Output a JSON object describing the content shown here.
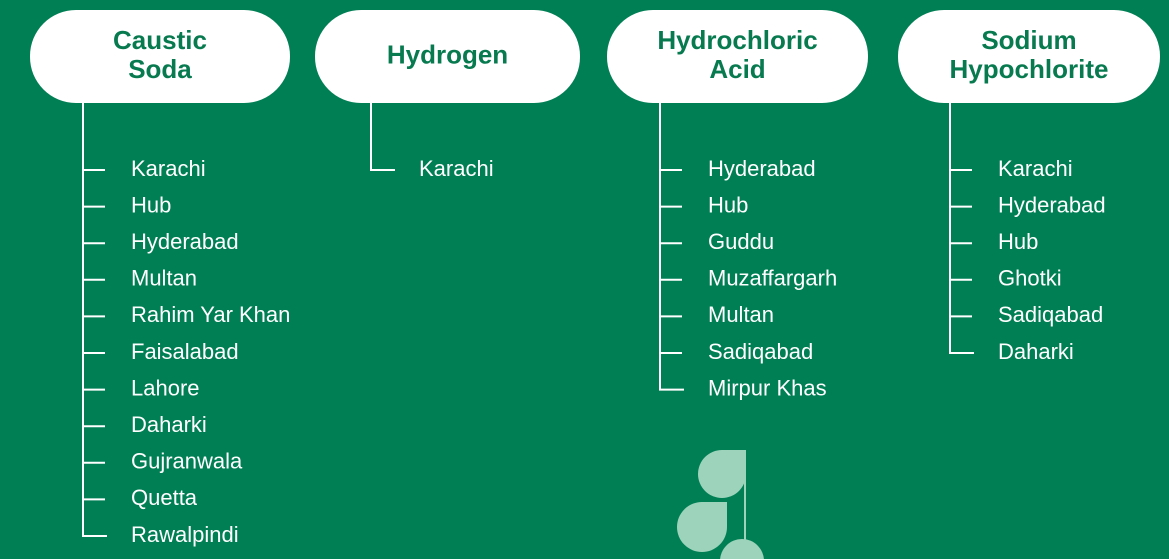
{
  "columns": [
    {
      "title": [
        "Caustic",
        "Soda"
      ],
      "items": [
        "Karachi",
        "Hub",
        "Hyderabad",
        "Multan",
        "Rahim Yar Khan",
        "Faisalabad",
        "Lahore",
        "Daharki",
        "Gujranwala",
        "Quetta",
        "Rawalpindi"
      ]
    },
    {
      "title": [
        "Hydrogen"
      ],
      "items": [
        "Karachi"
      ]
    },
    {
      "title": [
        "Hydrochloric",
        "Acid"
      ],
      "items": [
        "Hyderabad",
        "Hub",
        "Guddu",
        "Muzaffargarh",
        "Multan",
        "Sadiqabad",
        "Mirpur Khas"
      ]
    },
    {
      "title": [
        "Sodium",
        "Hypochlorite"
      ],
      "items": [
        "Karachi",
        "Hyderabad",
        "Hub",
        "Ghotki",
        "Sadiqabad",
        "Daharki"
      ]
    }
  ]
}
